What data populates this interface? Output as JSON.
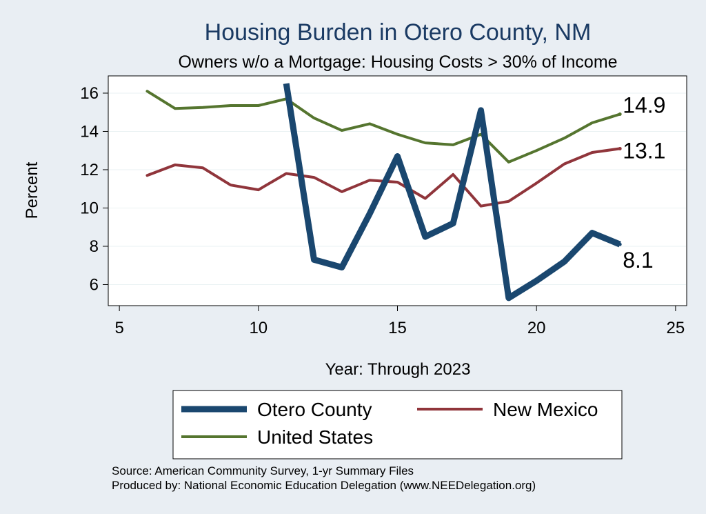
{
  "chart_data": {
    "type": "line",
    "title": "Housing Burden in Otero County, NM",
    "subtitle": "Owners w/o a Mortgage: Housing Costs > 30% of Income",
    "xlabel": "Year: Through 2023",
    "ylabel": "Percent",
    "xlim": [
      4.6,
      25.4
    ],
    "ylim": [
      4.9,
      16.9
    ],
    "xticks": [
      5,
      10,
      15,
      20,
      25
    ],
    "yticks": [
      6,
      8,
      10,
      12,
      14,
      16
    ],
    "series": [
      {
        "name": "Otero County",
        "color": "#1a476f",
        "x": [
          11,
          12,
          13,
          14,
          15,
          16,
          17,
          18,
          19,
          20,
          21,
          22,
          23
        ],
        "y": [
          16.5,
          7.3,
          6.9,
          9.7,
          12.7,
          8.5,
          9.2,
          15.1,
          5.3,
          6.2,
          7.2,
          8.7,
          8.1
        ],
        "end_label": "8.1"
      },
      {
        "name": "New Mexico",
        "color": "#90353b",
        "x": [
          6,
          7,
          8,
          9,
          10,
          11,
          12,
          13,
          14,
          15,
          16,
          17,
          18,
          19,
          20,
          21,
          22,
          23
        ],
        "y": [
          11.7,
          12.25,
          12.1,
          11.2,
          10.95,
          11.8,
          11.6,
          10.85,
          11.45,
          11.35,
          10.5,
          11.75,
          10.1,
          10.35,
          11.3,
          12.3,
          12.9,
          13.1
        ],
        "end_label": "13.1"
      },
      {
        "name": "United States",
        "color": "#55752f",
        "x": [
          6,
          7,
          8,
          9,
          10,
          11,
          12,
          13,
          14,
          15,
          16,
          17,
          18,
          19,
          20,
          21,
          22,
          23
        ],
        "y": [
          16.1,
          15.2,
          15.25,
          15.35,
          15.35,
          15.7,
          14.7,
          14.05,
          14.4,
          13.85,
          13.4,
          13.3,
          13.85,
          12.4,
          13.0,
          13.65,
          14.45,
          14.9
        ],
        "end_label": "14.9"
      }
    ],
    "legend": {
      "position": "bottom",
      "order": [
        "Otero County",
        "New Mexico",
        "United States"
      ]
    },
    "notes": [
      "Source: American Community Survey, 1-yr Summary Files",
      "Produced by: National Economic Education Delegation (www.NEEDelegation.org)"
    ]
  }
}
